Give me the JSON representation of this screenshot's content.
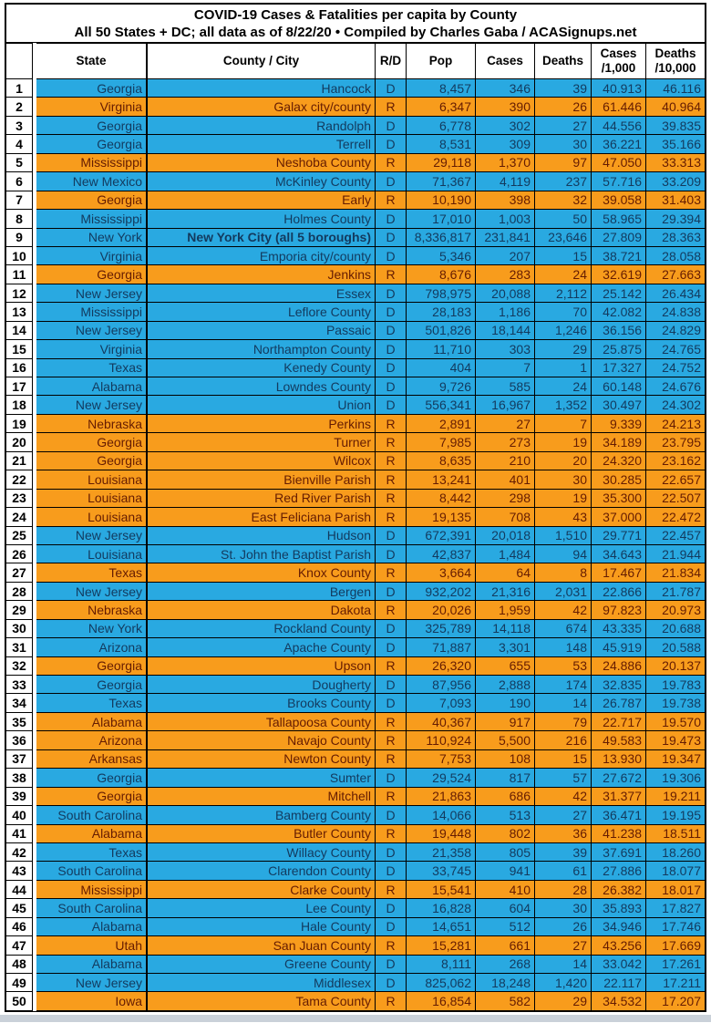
{
  "header": {
    "title": "COVID-19 Cases & Fatalities per capita by County",
    "subtitle": "All 50 States + DC; all data as of 8/22/20 • Compiled by Charles Gaba / ACASignups.net"
  },
  "columns": [
    {
      "key": "rank",
      "label": ""
    },
    {
      "key": "state",
      "label": "State"
    },
    {
      "key": "county",
      "label": "County / City"
    },
    {
      "key": "rd",
      "label": "R/D"
    },
    {
      "key": "pop",
      "label": "Pop"
    },
    {
      "key": "cases",
      "label": "Cases"
    },
    {
      "key": "deaths",
      "label": "Deaths"
    },
    {
      "key": "cases_per_1000",
      "label": "Cases\n/1,000"
    },
    {
      "key": "deaths_per_10000",
      "label": "Deaths\n/10,000"
    }
  ],
  "colors": {
    "dem_row_bg": "#29A9E1",
    "rep_row_bg": "#F89C1C",
    "dem_text": "#133A5E",
    "rep_text": "#651C02",
    "header_text": "#000000",
    "bottom_strip": "#CAD1D9"
  },
  "rows": [
    {
      "rank": "1",
      "state": "Georgia",
      "county": "Hancock",
      "rd": "D",
      "pop": "8,457",
      "cases": "346",
      "deaths": "39",
      "cases_per_1000": "40.913",
      "deaths_per_10000": "46.116"
    },
    {
      "rank": "2",
      "state": "Virginia",
      "county": "Galax city/county",
      "rd": "R",
      "pop": "6,347",
      "cases": "390",
      "deaths": "26",
      "cases_per_1000": "61.446",
      "deaths_per_10000": "40.964"
    },
    {
      "rank": "3",
      "state": "Georgia",
      "county": "Randolph",
      "rd": "D",
      "pop": "6,778",
      "cases": "302",
      "deaths": "27",
      "cases_per_1000": "44.556",
      "deaths_per_10000": "39.835"
    },
    {
      "rank": "4",
      "state": "Georgia",
      "county": "Terrell",
      "rd": "D",
      "pop": "8,531",
      "cases": "309",
      "deaths": "30",
      "cases_per_1000": "36.221",
      "deaths_per_10000": "35.166"
    },
    {
      "rank": "5",
      "state": "Mississippi",
      "county": "Neshoba County",
      "rd": "R",
      "pop": "29,118",
      "cases": "1,370",
      "deaths": "97",
      "cases_per_1000": "47.050",
      "deaths_per_10000": "33.313"
    },
    {
      "rank": "6",
      "state": "New Mexico",
      "county": "McKinley County",
      "rd": "D",
      "pop": "71,367",
      "cases": "4,119",
      "deaths": "237",
      "cases_per_1000": "57.716",
      "deaths_per_10000": "33.209"
    },
    {
      "rank": "7",
      "state": "Georgia",
      "county": "Early",
      "rd": "R",
      "pop": "10,190",
      "cases": "398",
      "deaths": "32",
      "cases_per_1000": "39.058",
      "deaths_per_10000": "31.403"
    },
    {
      "rank": "8",
      "state": "Mississippi",
      "county": "Holmes County",
      "rd": "D",
      "pop": "17,010",
      "cases": "1,003",
      "deaths": "50",
      "cases_per_1000": "58.965",
      "deaths_per_10000": "29.394"
    },
    {
      "rank": "9",
      "state": "New York",
      "county": "New York City (all 5 boroughs)",
      "rd": "D",
      "pop": "8,336,817",
      "cases": "231,841",
      "deaths": "23,646",
      "cases_per_1000": "27.809",
      "deaths_per_10000": "28.363",
      "emphasis": true
    },
    {
      "rank": "10",
      "state": "Virginia",
      "county": "Emporia city/county",
      "rd": "D",
      "pop": "5,346",
      "cases": "207",
      "deaths": "15",
      "cases_per_1000": "38.721",
      "deaths_per_10000": "28.058"
    },
    {
      "rank": "11",
      "state": "Georgia",
      "county": "Jenkins",
      "rd": "R",
      "pop": "8,676",
      "cases": "283",
      "deaths": "24",
      "cases_per_1000": "32.619",
      "deaths_per_10000": "27.663"
    },
    {
      "rank": "12",
      "state": "New Jersey",
      "county": "Essex",
      "rd": "D",
      "pop": "798,975",
      "cases": "20,088",
      "deaths": "2,112",
      "cases_per_1000": "25.142",
      "deaths_per_10000": "26.434"
    },
    {
      "rank": "13",
      "state": "Mississippi",
      "county": "Leflore County",
      "rd": "D",
      "pop": "28,183",
      "cases": "1,186",
      "deaths": "70",
      "cases_per_1000": "42.082",
      "deaths_per_10000": "24.838"
    },
    {
      "rank": "14",
      "state": "New Jersey",
      "county": "Passaic",
      "rd": "D",
      "pop": "501,826",
      "cases": "18,144",
      "deaths": "1,246",
      "cases_per_1000": "36.156",
      "deaths_per_10000": "24.829"
    },
    {
      "rank": "15",
      "state": "Virginia",
      "county": "Northampton County",
      "rd": "D",
      "pop": "11,710",
      "cases": "303",
      "deaths": "29",
      "cases_per_1000": "25.875",
      "deaths_per_10000": "24.765"
    },
    {
      "rank": "16",
      "state": "Texas",
      "county": "Kenedy County",
      "rd": "D",
      "pop": "404",
      "cases": "7",
      "deaths": "1",
      "cases_per_1000": "17.327",
      "deaths_per_10000": "24.752"
    },
    {
      "rank": "17",
      "state": "Alabama",
      "county": "Lowndes County",
      "rd": "D",
      "pop": "9,726",
      "cases": "585",
      "deaths": "24",
      "cases_per_1000": "60.148",
      "deaths_per_10000": "24.676"
    },
    {
      "rank": "18",
      "state": "New Jersey",
      "county": "Union",
      "rd": "D",
      "pop": "556,341",
      "cases": "16,967",
      "deaths": "1,352",
      "cases_per_1000": "30.497",
      "deaths_per_10000": "24.302"
    },
    {
      "rank": "19",
      "state": "Nebraska",
      "county": "Perkins",
      "rd": "R",
      "pop": "2,891",
      "cases": "27",
      "deaths": "7",
      "cases_per_1000": "9.339",
      "deaths_per_10000": "24.213"
    },
    {
      "rank": "20",
      "state": "Georgia",
      "county": "Turner",
      "rd": "R",
      "pop": "7,985",
      "cases": "273",
      "deaths": "19",
      "cases_per_1000": "34.189",
      "deaths_per_10000": "23.795"
    },
    {
      "rank": "21",
      "state": "Georgia",
      "county": "Wilcox",
      "rd": "R",
      "pop": "8,635",
      "cases": "210",
      "deaths": "20",
      "cases_per_1000": "24.320",
      "deaths_per_10000": "23.162"
    },
    {
      "rank": "22",
      "state": "Louisiana",
      "county": "Bienville Parish",
      "rd": "R",
      "pop": "13,241",
      "cases": "401",
      "deaths": "30",
      "cases_per_1000": "30.285",
      "deaths_per_10000": "22.657"
    },
    {
      "rank": "23",
      "state": "Louisiana",
      "county": "Red River Parish",
      "rd": "R",
      "pop": "8,442",
      "cases": "298",
      "deaths": "19",
      "cases_per_1000": "35.300",
      "deaths_per_10000": "22.507"
    },
    {
      "rank": "24",
      "state": "Louisiana",
      "county": "East Feliciana Parish",
      "rd": "R",
      "pop": "19,135",
      "cases": "708",
      "deaths": "43",
      "cases_per_1000": "37.000",
      "deaths_per_10000": "22.472"
    },
    {
      "rank": "25",
      "state": "New Jersey",
      "county": "Hudson",
      "rd": "D",
      "pop": "672,391",
      "cases": "20,018",
      "deaths": "1,510",
      "cases_per_1000": "29.771",
      "deaths_per_10000": "22.457"
    },
    {
      "rank": "26",
      "state": "Louisiana",
      "county": "St. John the Baptist Parish",
      "rd": "D",
      "pop": "42,837",
      "cases": "1,484",
      "deaths": "94",
      "cases_per_1000": "34.643",
      "deaths_per_10000": "21.944"
    },
    {
      "rank": "27",
      "state": "Texas",
      "county": "Knox County",
      "rd": "R",
      "pop": "3,664",
      "cases": "64",
      "deaths": "8",
      "cases_per_1000": "17.467",
      "deaths_per_10000": "21.834"
    },
    {
      "rank": "28",
      "state": "New Jersey",
      "county": "Bergen",
      "rd": "D",
      "pop": "932,202",
      "cases": "21,316",
      "deaths": "2,031",
      "cases_per_1000": "22.866",
      "deaths_per_10000": "21.787"
    },
    {
      "rank": "29",
      "state": "Nebraska",
      "county": "Dakota",
      "rd": "R",
      "pop": "20,026",
      "cases": "1,959",
      "deaths": "42",
      "cases_per_1000": "97.823",
      "deaths_per_10000": "20.973"
    },
    {
      "rank": "30",
      "state": "New York",
      "county": "Rockland County",
      "rd": "D",
      "pop": "325,789",
      "cases": "14,118",
      "deaths": "674",
      "cases_per_1000": "43.335",
      "deaths_per_10000": "20.688"
    },
    {
      "rank": "31",
      "state": "Arizona",
      "county": "Apache County",
      "rd": "D",
      "pop": "71,887",
      "cases": "3,301",
      "deaths": "148",
      "cases_per_1000": "45.919",
      "deaths_per_10000": "20.588"
    },
    {
      "rank": "32",
      "state": "Georgia",
      "county": "Upson",
      "rd": "R",
      "pop": "26,320",
      "cases": "655",
      "deaths": "53",
      "cases_per_1000": "24.886",
      "deaths_per_10000": "20.137"
    },
    {
      "rank": "33",
      "state": "Georgia",
      "county": "Dougherty",
      "rd": "D",
      "pop": "87,956",
      "cases": "2,888",
      "deaths": "174",
      "cases_per_1000": "32.835",
      "deaths_per_10000": "19.783"
    },
    {
      "rank": "34",
      "state": "Texas",
      "county": "Brooks County",
      "rd": "D",
      "pop": "7,093",
      "cases": "190",
      "deaths": "14",
      "cases_per_1000": "26.787",
      "deaths_per_10000": "19.738"
    },
    {
      "rank": "35",
      "state": "Alabama",
      "county": "Tallapoosa County",
      "rd": "R",
      "pop": "40,367",
      "cases": "917",
      "deaths": "79",
      "cases_per_1000": "22.717",
      "deaths_per_10000": "19.570"
    },
    {
      "rank": "36",
      "state": "Arizona",
      "county": "Navajo County",
      "rd": "R",
      "pop": "110,924",
      "cases": "5,500",
      "deaths": "216",
      "cases_per_1000": "49.583",
      "deaths_per_10000": "19.473"
    },
    {
      "rank": "37",
      "state": "Arkansas",
      "county": "Newton County",
      "rd": "R",
      "pop": "7,753",
      "cases": "108",
      "deaths": "15",
      "cases_per_1000": "13.930",
      "deaths_per_10000": "19.347"
    },
    {
      "rank": "38",
      "state": "Georgia",
      "county": "Sumter",
      "rd": "D",
      "pop": "29,524",
      "cases": "817",
      "deaths": "57",
      "cases_per_1000": "27.672",
      "deaths_per_10000": "19.306"
    },
    {
      "rank": "39",
      "state": "Georgia",
      "county": "Mitchell",
      "rd": "R",
      "pop": "21,863",
      "cases": "686",
      "deaths": "42",
      "cases_per_1000": "31.377",
      "deaths_per_10000": "19.211"
    },
    {
      "rank": "40",
      "state": "South Carolina",
      "county": "Bamberg County",
      "rd": "D",
      "pop": "14,066",
      "cases": "513",
      "deaths": "27",
      "cases_per_1000": "36.471",
      "deaths_per_10000": "19.195"
    },
    {
      "rank": "41",
      "state": "Alabama",
      "county": "Butler County",
      "rd": "R",
      "pop": "19,448",
      "cases": "802",
      "deaths": "36",
      "cases_per_1000": "41.238",
      "deaths_per_10000": "18.511"
    },
    {
      "rank": "42",
      "state": "Texas",
      "county": "Willacy County",
      "rd": "D",
      "pop": "21,358",
      "cases": "805",
      "deaths": "39",
      "cases_per_1000": "37.691",
      "deaths_per_10000": "18.260"
    },
    {
      "rank": "43",
      "state": "South Carolina",
      "county": "Clarendon County",
      "rd": "D",
      "pop": "33,745",
      "cases": "941",
      "deaths": "61",
      "cases_per_1000": "27.886",
      "deaths_per_10000": "18.077"
    },
    {
      "rank": "44",
      "state": "Mississippi",
      "county": "Clarke County",
      "rd": "R",
      "pop": "15,541",
      "cases": "410",
      "deaths": "28",
      "cases_per_1000": "26.382",
      "deaths_per_10000": "18.017"
    },
    {
      "rank": "45",
      "state": "South Carolina",
      "county": "Lee County",
      "rd": "D",
      "pop": "16,828",
      "cases": "604",
      "deaths": "30",
      "cases_per_1000": "35.893",
      "deaths_per_10000": "17.827"
    },
    {
      "rank": "46",
      "state": "Alabama",
      "county": "Hale County",
      "rd": "D",
      "pop": "14,651",
      "cases": "512",
      "deaths": "26",
      "cases_per_1000": "34.946",
      "deaths_per_10000": "17.746"
    },
    {
      "rank": "47",
      "state": "Utah",
      "county": "San Juan County",
      "rd": "R",
      "pop": "15,281",
      "cases": "661",
      "deaths": "27",
      "cases_per_1000": "43.256",
      "deaths_per_10000": "17.669"
    },
    {
      "rank": "48",
      "state": "Alabama",
      "county": "Greene County",
      "rd": "D",
      "pop": "8,111",
      "cases": "268",
      "deaths": "14",
      "cases_per_1000": "33.042",
      "deaths_per_10000": "17.261"
    },
    {
      "rank": "49",
      "state": "New Jersey",
      "county": "Middlesex",
      "rd": "D",
      "pop": "825,062",
      "cases": "18,248",
      "deaths": "1,420",
      "cases_per_1000": "22.117",
      "deaths_per_10000": "17.211"
    },
    {
      "rank": "50",
      "state": "Iowa",
      "county": "Tama County",
      "rd": "R",
      "pop": "16,854",
      "cases": "582",
      "deaths": "29",
      "cases_per_1000": "34.532",
      "deaths_per_10000": "17.207"
    }
  ]
}
